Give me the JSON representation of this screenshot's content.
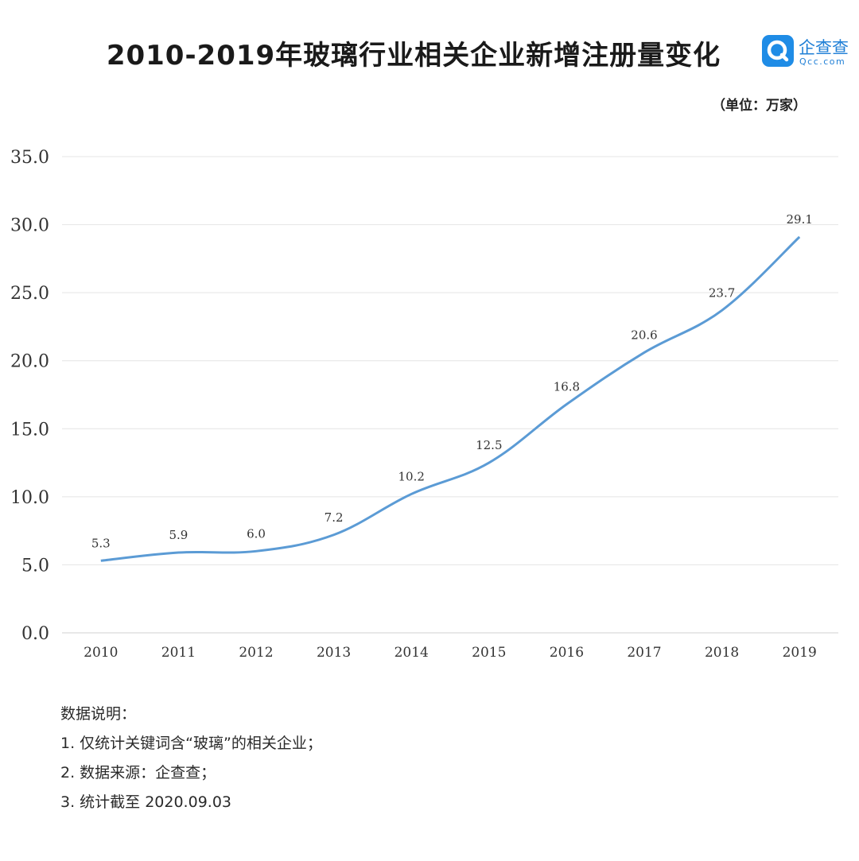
{
  "header": {
    "title": "2010-2019年玻璃行业相关企业新增注册量变化",
    "unit": "（单位：万家）"
  },
  "logo": {
    "name": "企查查",
    "domain": "Qcc.com",
    "icon": "qcc-magnifier-icon",
    "color": "#1f8ce6"
  },
  "notes": {
    "heading": "数据说明：",
    "items": [
      "1. 仅统计关键词含“玻璃”的相关企业；",
      "2. 数据来源：企查查；",
      "3. 统计截至 2020.09.03"
    ]
  },
  "chart_data": {
    "type": "line",
    "categories": [
      "2010",
      "2011",
      "2012",
      "2013",
      "2014",
      "2015",
      "2016",
      "2017",
      "2018",
      "2019"
    ],
    "series": [
      {
        "values": [
          5.3,
          5.9,
          6.0,
          7.2,
          10.2,
          12.5,
          16.8,
          20.6,
          23.7,
          29.1
        ],
        "labels": [
          "5.3",
          "5.9",
          "6.0",
          "7.2",
          "10.2",
          "12.5",
          "16.8",
          "20.6",
          "23.7",
          "29.1"
        ],
        "color": "#5b9bd5"
      }
    ],
    "ylim": [
      0,
      35
    ],
    "yticks": [
      "0.0",
      "5.0",
      "10.0",
      "15.0",
      "20.0",
      "25.0",
      "30.0",
      "35.0"
    ],
    "ytick_values": [
      0,
      5,
      10,
      15,
      20,
      25,
      30,
      35
    ],
    "grid": true,
    "legend": "none"
  }
}
